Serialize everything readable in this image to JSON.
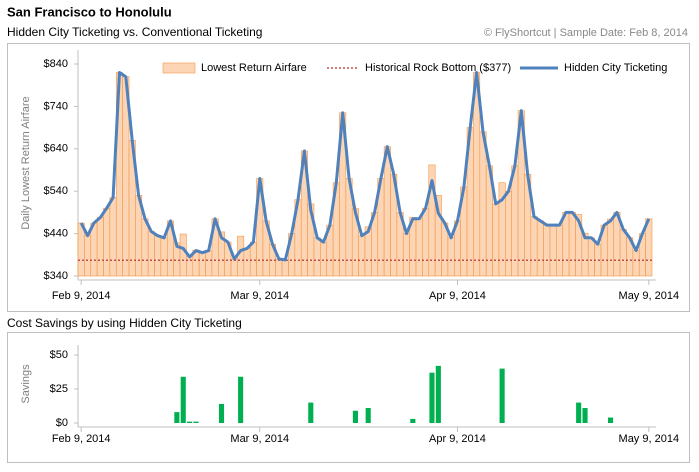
{
  "header": {
    "title": "San Francisco to Honolulu",
    "subtitle": "Hidden City Ticketing vs. Conventional Ticketing",
    "source": "© FlyShortcut |  Sample Date: Feb 8, 2014"
  },
  "chart_data": [
    {
      "type": "bar",
      "ylabel": "Daily Lowest Return Airfare",
      "legend": "top",
      "categories": [
        "Feb 9, 2014",
        null,
        null,
        null,
        null,
        null,
        null,
        null,
        null,
        null,
        null,
        null,
        null,
        null,
        null,
        null,
        null,
        null,
        null,
        null,
        null,
        null,
        null,
        null,
        null,
        null,
        null,
        null,
        "Mar 9, 2014",
        null,
        null,
        null,
        null,
        null,
        null,
        null,
        null,
        null,
        null,
        null,
        null,
        null,
        null,
        null,
        null,
        null,
        null,
        null,
        null,
        null,
        null,
        null,
        null,
        null,
        null,
        null,
        null,
        null,
        null,
        "Apr 9, 2014",
        null,
        null,
        null,
        null,
        null,
        null,
        null,
        null,
        null,
        null,
        null,
        null,
        null,
        null,
        null,
        null,
        null,
        null,
        null,
        null,
        null,
        null,
        null,
        null,
        null,
        null,
        null,
        null,
        null,
        "May 9, 2014"
      ],
      "ylim": [
        340,
        840
      ],
      "yticks": [
        {
          "value": 340,
          "label": "$340"
        },
        {
          "value": 440,
          "label": "$440"
        },
        {
          "value": 540,
          "label": "$540"
        },
        {
          "value": 640,
          "label": "$640"
        },
        {
          "value": 740,
          "label": "$740"
        },
        {
          "value": 840,
          "label": "$840"
        }
      ],
      "series": [
        {
          "name": "Lowest Return Airfare",
          "type": "bar",
          "color": "#fcd5b4",
          "stroke": "#f79646",
          "values": [
            465,
            435,
            465,
            478,
            500,
            525,
            820,
            810,
            660,
            530,
            475,
            445,
            435,
            430,
            470,
            418,
            439,
            386,
            401,
            395,
            400,
            475,
            444,
            420,
            380,
            434,
            405,
            420,
            570,
            470,
            415,
            380,
            378,
            440,
            520,
            635,
            510,
            430,
            420,
            460,
            560,
            725,
            570,
            499,
            435,
            456,
            490,
            570,
            645,
            580,
            490,
            440,
            478,
            475,
            500,
            602,
            530,
            465,
            430,
            470,
            550,
            690,
            820,
            680,
            600,
            510,
            560,
            540,
            600,
            730,
            580,
            480,
            470,
            460,
            460,
            460,
            490,
            490,
            485,
            441,
            430,
            415,
            460,
            474,
            490,
            450,
            430,
            400,
            440,
            475
          ]
        },
        {
          "name": "Historical Rock Bottom ($377)",
          "type": "hline",
          "color": "#c0504d",
          "value": 377
        },
        {
          "name": "Hidden City Ticketing",
          "type": "line",
          "color": "#4f81bd",
          "values": [
            465,
            435,
            465,
            478,
            500,
            525,
            820,
            810,
            660,
            530,
            475,
            445,
            435,
            430,
            470,
            410,
            405,
            385,
            400,
            395,
            400,
            475,
            430,
            420,
            380,
            400,
            405,
            420,
            570,
            470,
            415,
            380,
            378,
            440,
            520,
            635,
            495,
            430,
            420,
            460,
            560,
            725,
            570,
            490,
            435,
            445,
            490,
            570,
            645,
            580,
            490,
            440,
            475,
            475,
            500,
            565,
            488,
            465,
            430,
            470,
            550,
            690,
            820,
            680,
            600,
            510,
            520,
            540,
            600,
            730,
            580,
            480,
            470,
            460,
            460,
            460,
            490,
            490,
            470,
            430,
            430,
            415,
            460,
            470,
            490,
            450,
            430,
            400,
            440,
            475
          ]
        }
      ]
    },
    {
      "type": "bar",
      "title": "Cost Savings by using Hidden City Ticketing",
      "ylabel": "Savings",
      "color": "#00b050",
      "categories": [
        "Feb 9, 2014",
        null,
        null,
        null,
        null,
        null,
        null,
        null,
        null,
        null,
        null,
        null,
        null,
        null,
        null,
        null,
        null,
        null,
        null,
        null,
        null,
        null,
        null,
        null,
        null,
        null,
        null,
        null,
        "Mar 9, 2014",
        null,
        null,
        null,
        null,
        null,
        null,
        null,
        null,
        null,
        null,
        null,
        null,
        null,
        null,
        null,
        null,
        null,
        null,
        null,
        null,
        null,
        null,
        null,
        null,
        null,
        null,
        null,
        null,
        null,
        null,
        "Apr 9, 2014",
        null,
        null,
        null,
        null,
        null,
        null,
        null,
        null,
        null,
        null,
        null,
        null,
        null,
        null,
        null,
        null,
        null,
        null,
        null,
        null,
        null,
        null,
        null,
        null,
        null,
        null,
        null,
        null,
        null,
        "May 9, 2014"
      ],
      "ylim": [
        0,
        50
      ],
      "yticks": [
        {
          "value": 0,
          "label": "$0"
        },
        {
          "value": 25,
          "label": "$25"
        },
        {
          "value": 50,
          "label": "$50"
        }
      ],
      "values": [
        0,
        0,
        0,
        0,
        0,
        0,
        0,
        0,
        0,
        0,
        0,
        0,
        0,
        0,
        0,
        8,
        34,
        1,
        1,
        0,
        0,
        0,
        14,
        0,
        0,
        34,
        0,
        0,
        0,
        0,
        0,
        0,
        0,
        0,
        0,
        0,
        15,
        0,
        0,
        0,
        0,
        0,
        0,
        9,
        0,
        11,
        0,
        0,
        0,
        0,
        0,
        0,
        3,
        0,
        0,
        37,
        42,
        0,
        0,
        0,
        0,
        0,
        0,
        0,
        0,
        0,
        40,
        0,
        0,
        0,
        0,
        0,
        0,
        0,
        0,
        0,
        0,
        0,
        15,
        11,
        0,
        0,
        0,
        4,
        0,
        0,
        0,
        0,
        0,
        0
      ]
    }
  ]
}
